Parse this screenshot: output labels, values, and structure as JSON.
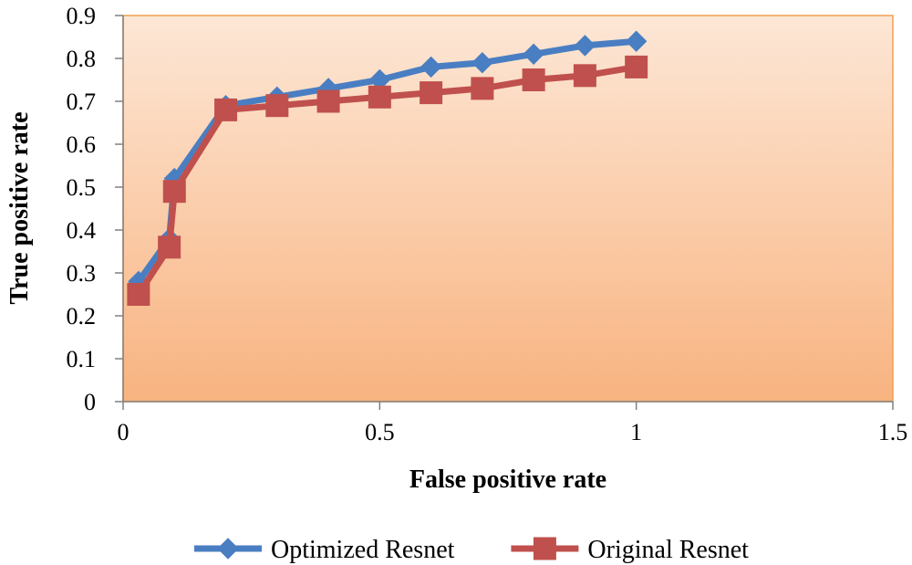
{
  "chart_data": {
    "type": "line",
    "title": "",
    "xlabel": "False positive rate",
    "ylabel": "True positive rate",
    "xlim": [
      0,
      1.5
    ],
    "ylim": [
      0,
      0.9
    ],
    "x_ticks": [
      "0",
      "0.5",
      "1",
      "1.5"
    ],
    "y_ticks": [
      "0",
      "0.1",
      "0.2",
      "0.3",
      "0.4",
      "0.5",
      "0.6",
      "0.7",
      "0.8",
      "0.9"
    ],
    "grid": false,
    "legend_position": "bottom",
    "plot_background": [
      "#fde7d6",
      "#f8b380"
    ],
    "plot_border_color": "#f0a050",
    "series": [
      {
        "name": "Optimized Resnet",
        "color": "#4a7ec2",
        "marker": "diamond",
        "x": [
          0.03,
          0.09,
          0.1,
          0.2,
          0.3,
          0.4,
          0.5,
          0.6,
          0.7,
          0.8,
          0.9,
          1.0
        ],
        "y": [
          0.28,
          0.38,
          0.52,
          0.69,
          0.71,
          0.73,
          0.75,
          0.78,
          0.79,
          0.81,
          0.83,
          0.84
        ]
      },
      {
        "name": "Original Resnet",
        "color": "#c0504d",
        "marker": "square",
        "x": [
          0.03,
          0.09,
          0.1,
          0.2,
          0.3,
          0.4,
          0.5,
          0.6,
          0.7,
          0.8,
          0.9,
          1.0
        ],
        "y": [
          0.25,
          0.36,
          0.49,
          0.68,
          0.69,
          0.7,
          0.71,
          0.72,
          0.73,
          0.75,
          0.76,
          0.78
        ]
      }
    ]
  }
}
